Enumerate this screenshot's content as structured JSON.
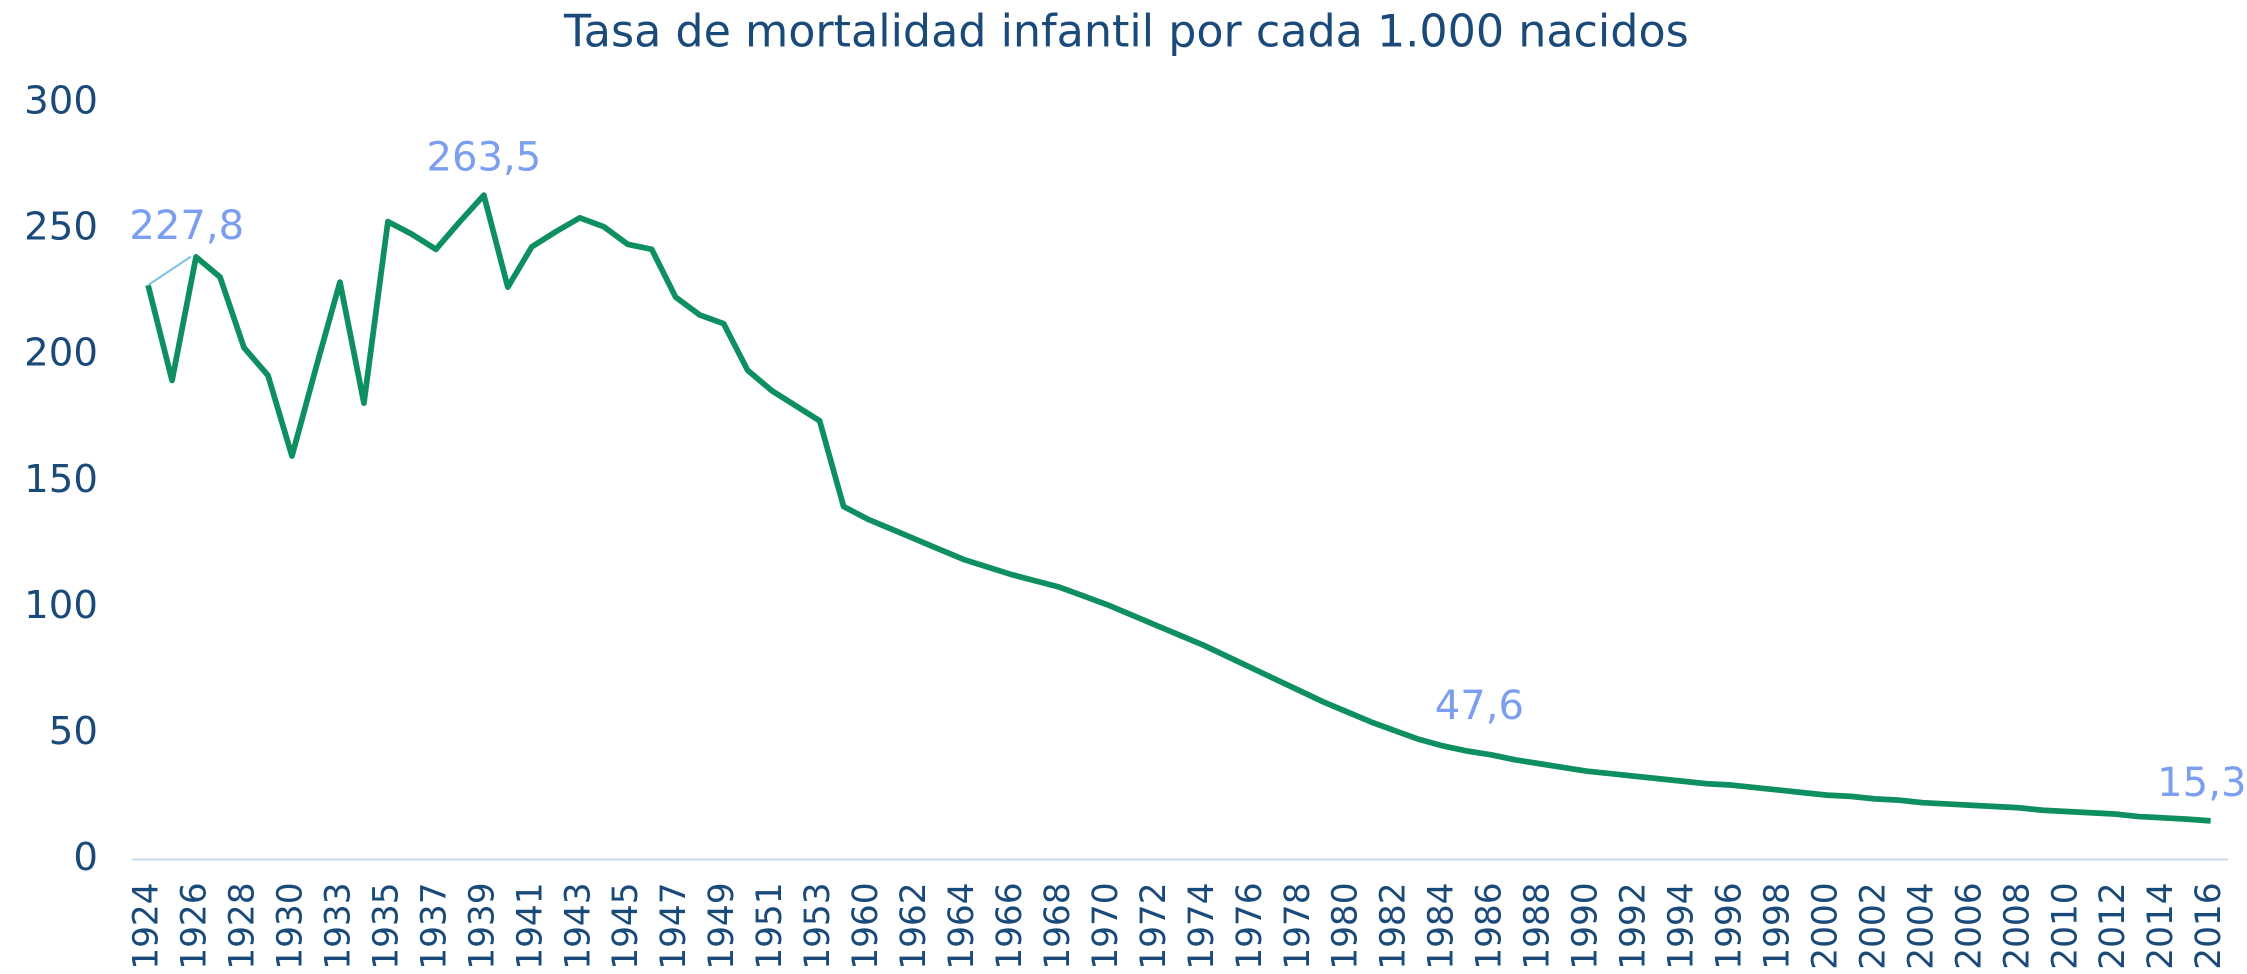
{
  "chart_data": {
    "type": "line",
    "title": "Tasa de mortalidad infantil por cada 1.000 nacidos",
    "categories": [
      "1924",
      null,
      "1926",
      null,
      "1928",
      null,
      "1930",
      null,
      "1933",
      null,
      "1935",
      null,
      "1937",
      null,
      "1939",
      null,
      "1941",
      null,
      "1943",
      null,
      "1945",
      null,
      "1947",
      null,
      "1949",
      null,
      "1951",
      null,
      "1953",
      null,
      "1960",
      null,
      "1962",
      null,
      "1964",
      null,
      "1966",
      null,
      "1968",
      null,
      "1970",
      null,
      "1972",
      null,
      "1974",
      null,
      "1976",
      null,
      "1978",
      null,
      "1980",
      null,
      "1982",
      null,
      "1984",
      null,
      "1986",
      null,
      "1988",
      null,
      "1990",
      null,
      "1992",
      null,
      "1994",
      null,
      "1996",
      null,
      "1998",
      null,
      "2000",
      null,
      "2002",
      null,
      "2004",
      null,
      "2006",
      null,
      "2008",
      null,
      "2010",
      null,
      "2012",
      null,
      "2014",
      null,
      "2016"
    ],
    "values": [
      227.8,
      190,
      239,
      231,
      203,
      192,
      160,
      195,
      229,
      181,
      253,
      248,
      242,
      253,
      263.5,
      227,
      243,
      249,
      254.5,
      251,
      244,
      242,
      223,
      216,
      212.5,
      194,
      186,
      180,
      174,
      140,
      135,
      131,
      127,
      123,
      119,
      116,
      113,
      110.5,
      108,
      104.5,
      101,
      97,
      93,
      89,
      85,
      80.5,
      76,
      71.5,
      67,
      62.5,
      58.5,
      54.5,
      51,
      47.6,
      45,
      43,
      41.5,
      39.5,
      38,
      36.5,
      35,
      34,
      33,
      32,
      31,
      30,
      29.5,
      28.5,
      27.5,
      26.5,
      25.5,
      25,
      24,
      23.5,
      22.5,
      22,
      21.5,
      21,
      20.5,
      19.5,
      19,
      18.5,
      18,
      17,
      16.5,
      16,
      15.3
    ],
    "value_labels": [
      "227,8",
      null,
      null,
      null,
      null,
      null,
      null,
      null,
      null,
      null,
      null,
      null,
      null,
      null,
      "263,5",
      null,
      null,
      null,
      null,
      null,
      null,
      null,
      null,
      null,
      null,
      null,
      null,
      null,
      null,
      null,
      null,
      null,
      null,
      null,
      null,
      null,
      null,
      null,
      null,
      null,
      null,
      null,
      null,
      null,
      null,
      null,
      null,
      null,
      null,
      null,
      null,
      null,
      null,
      "47,6",
      null,
      null,
      null,
      null,
      null,
      null,
      null,
      null,
      null,
      null,
      null,
      null,
      null,
      null,
      null,
      null,
      null,
      null,
      null,
      null,
      null,
      null,
      null,
      null,
      null,
      null,
      null,
      null,
      null,
      null,
      null,
      null,
      "15,3"
    ],
    "color": "#0e8f5f",
    "label_color": "#7b9ef0",
    "ylim": [
      0,
      300
    ],
    "yticks": [
      0,
      50,
      100,
      150,
      200,
      250,
      300
    ],
    "grid": false
  }
}
